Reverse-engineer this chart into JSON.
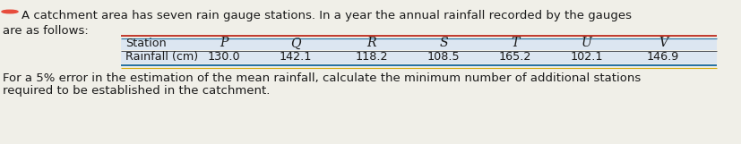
{
  "title_line1": "A catchment area has seven rain gauge stations. In a year the annual rainfall recorded by the gauges",
  "title_line2": "are as follows:",
  "stations": [
    "Station",
    "P",
    "Q",
    "R",
    "S",
    "T",
    "U",
    "V"
  ],
  "rainfall_label": "Rainfall (cm)",
  "rainfall_values": [
    "130.0",
    "142.1",
    "118.2",
    "108.5",
    "165.2",
    "102.1",
    "146.9"
  ],
  "footer_line1": "For a 5% error in the estimation of the mean rainfall, calculate the minimum number of additional stations",
  "footer_line2": "required to be established in the catchment.",
  "bg_color": "#f0efe8",
  "table_bg": "#dce6f1",
  "line_color_red": "#c0392b",
  "line_color_blue": "#2471a3",
  "line_color_green": "#1e8449",
  "line_color_gold": "#d4ac0d",
  "text_color": "#1a1a1a",
  "circle_color": "#e74c3c",
  "font_size_body": 9.5,
  "font_size_table": 9.2
}
